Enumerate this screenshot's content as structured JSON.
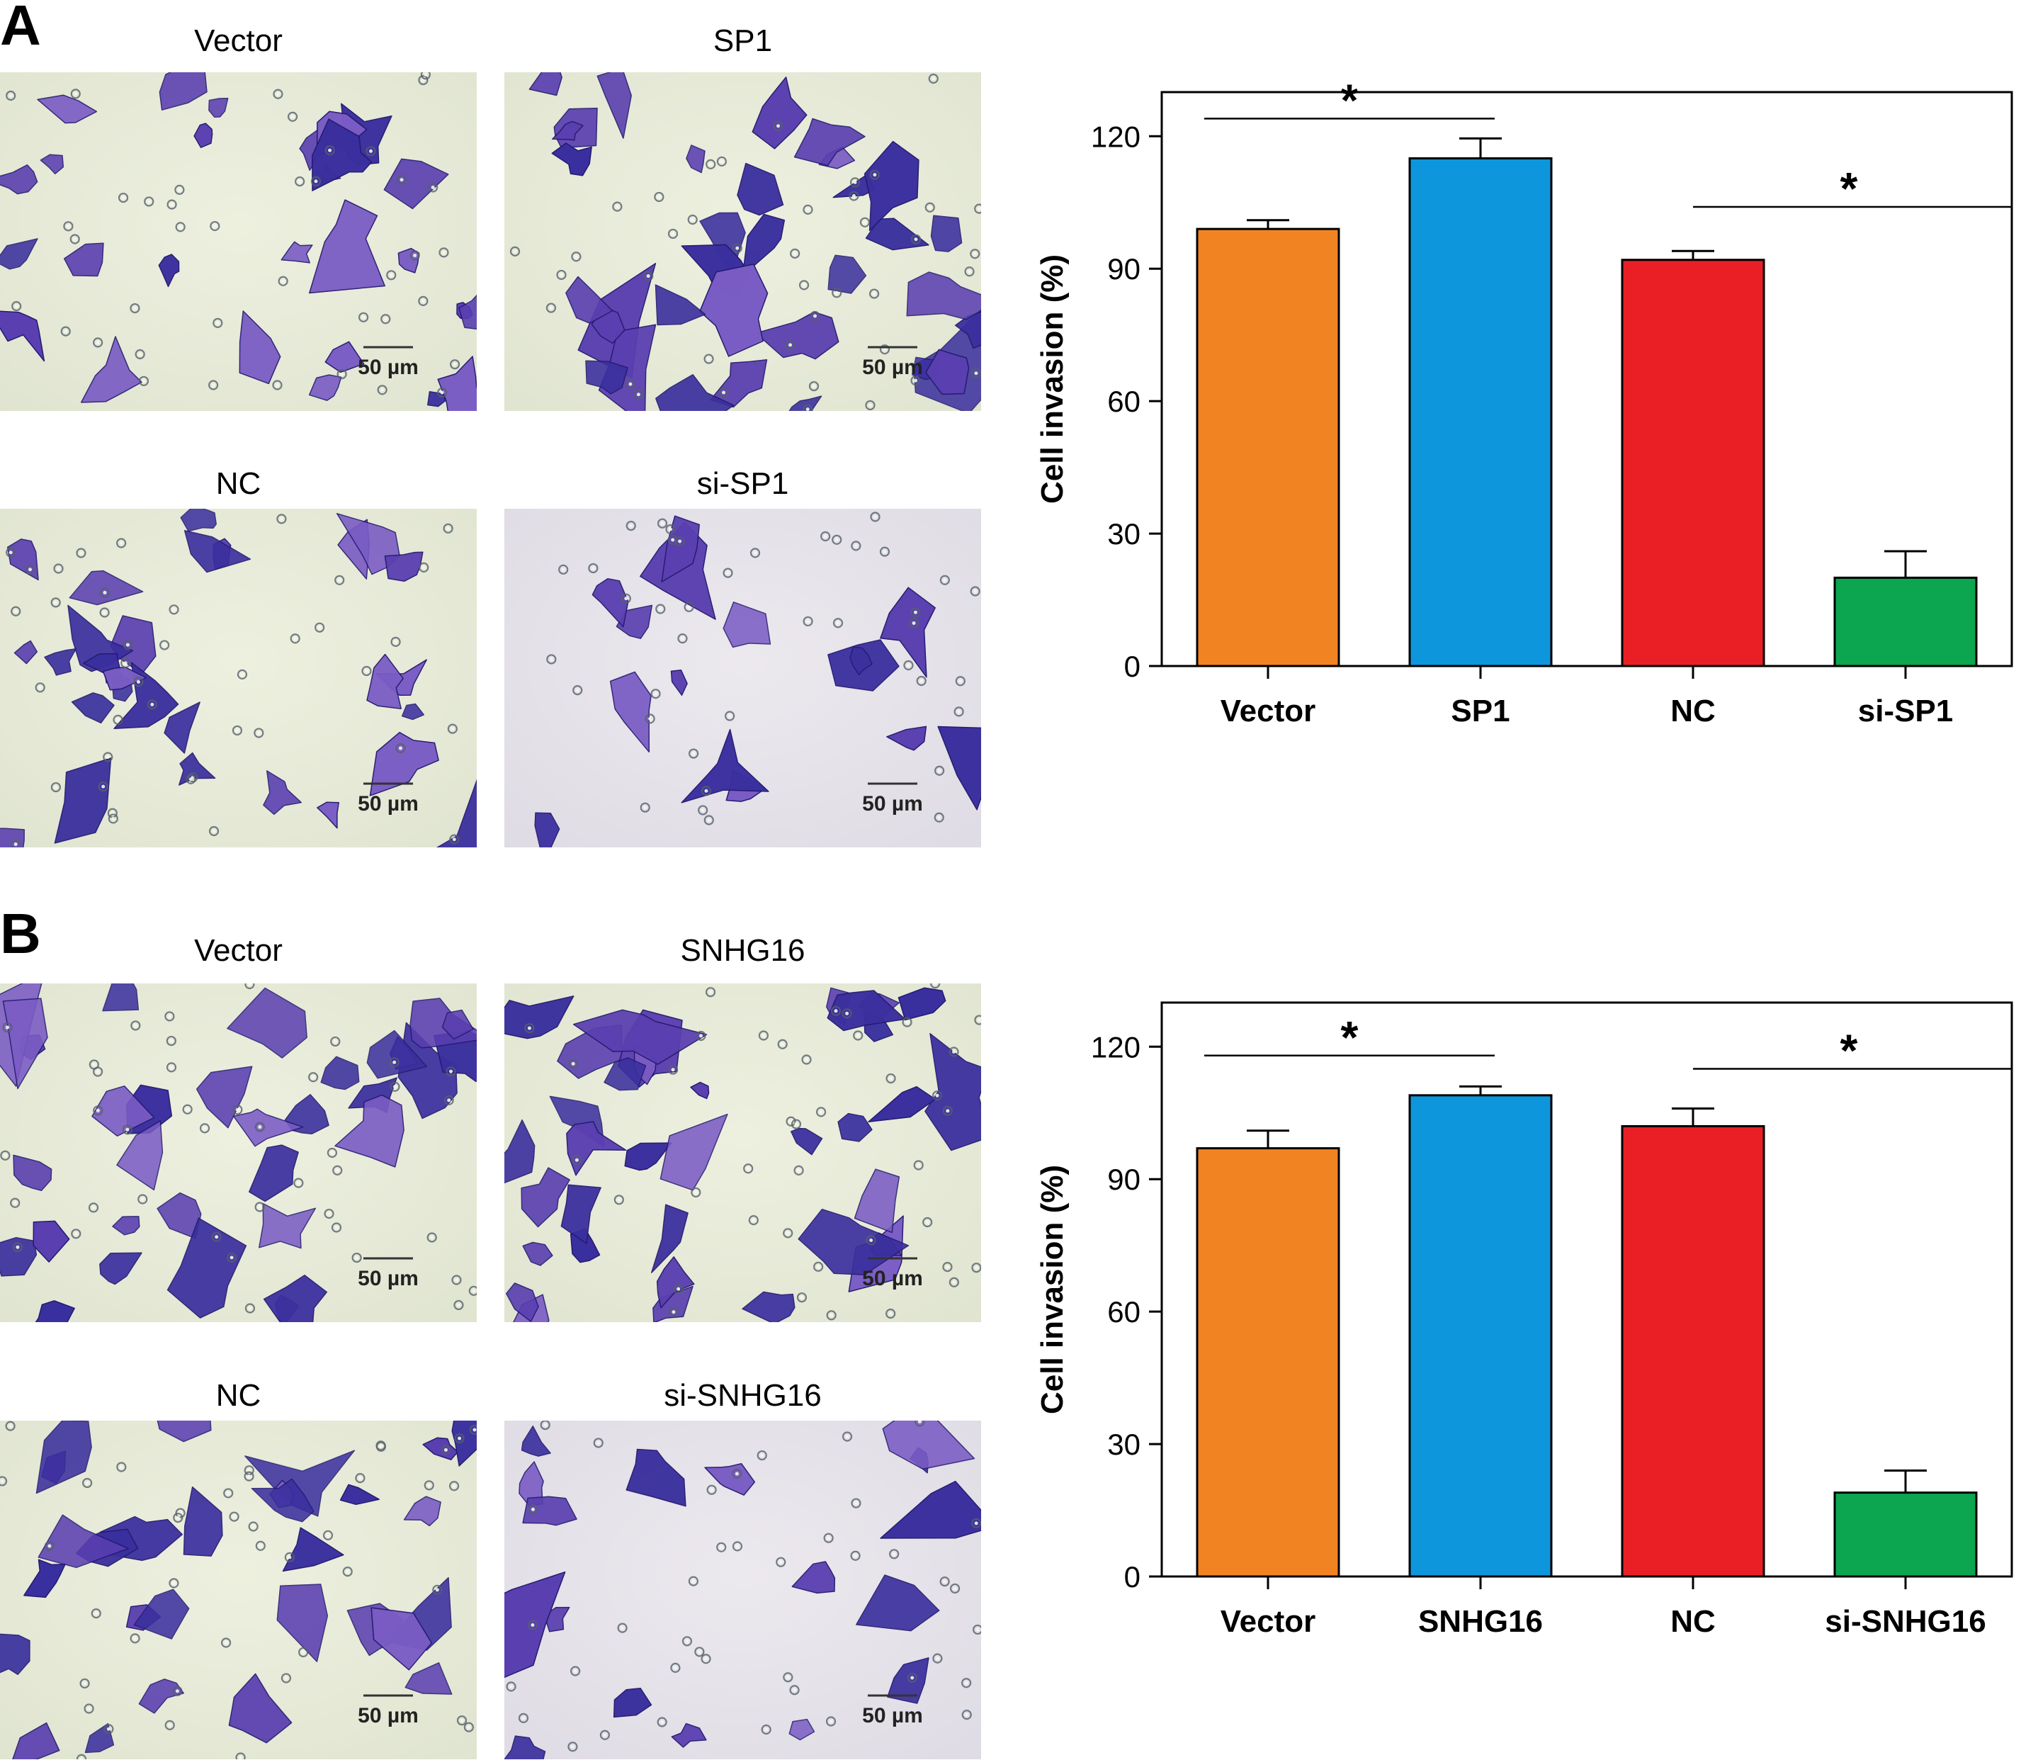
{
  "panels": [
    {
      "letter": "A",
      "images": [
        {
          "label": "Vector",
          "scale_bar": "50 µm",
          "density": 0.55
        },
        {
          "label": "SP1",
          "scale_bar": "50 µm",
          "density": 0.75
        },
        {
          "label": "NC",
          "scale_bar": "50 µm",
          "density": 0.6
        },
        {
          "label": "si-SP1",
          "scale_bar": "50 µm",
          "density": 0.2
        }
      ],
      "chart_data": {
        "type": "bar",
        "categories": [
          "Vector",
          "SP1",
          "NC",
          "si-SP1"
        ],
        "values": [
          99,
          115,
          92,
          20
        ],
        "errors": [
          2,
          4.5,
          2,
          6
        ],
        "colors": [
          "#f28322",
          "#0e96dc",
          "#ea1f26",
          "#0ca550"
        ],
        "ylabel": "Cell invasion (%)",
        "ylim": [
          0,
          130
        ],
        "yticks": [
          0,
          30,
          60,
          90,
          120
        ],
        "significance": [
          {
            "from": 0,
            "to": 1,
            "y": 124,
            "label": "*"
          },
          {
            "from": 2,
            "to": 3,
            "y": 104,
            "label": "*"
          }
        ]
      }
    },
    {
      "letter": "B",
      "images": [
        {
          "label": "Vector",
          "scale_bar": "50 µm",
          "density": 0.7
        },
        {
          "label": "SNHG16",
          "scale_bar": "50 µm",
          "density": 0.8
        },
        {
          "label": "NC",
          "scale_bar": "50 µm",
          "density": 0.6
        },
        {
          "label": "si-SNHG16",
          "scale_bar": "50 µm",
          "density": 0.25
        }
      ],
      "chart_data": {
        "type": "bar",
        "categories": [
          "Vector",
          "SNHG16",
          "NC",
          "si-SNHG16"
        ],
        "values": [
          97,
          109,
          102,
          19
        ],
        "errors": [
          4,
          2,
          4,
          5
        ],
        "colors": [
          "#f28322",
          "#0e96dc",
          "#ea1f26",
          "#0ca550"
        ],
        "ylabel": "Cell invasion (%)",
        "ylim": [
          0,
          130
        ],
        "yticks": [
          0,
          30,
          60,
          90,
          120
        ],
        "significance": [
          {
            "from": 0,
            "to": 1,
            "y": 118,
            "label": "*"
          },
          {
            "from": 2,
            "to": 3,
            "y": 115,
            "label": "*"
          }
        ]
      }
    }
  ]
}
